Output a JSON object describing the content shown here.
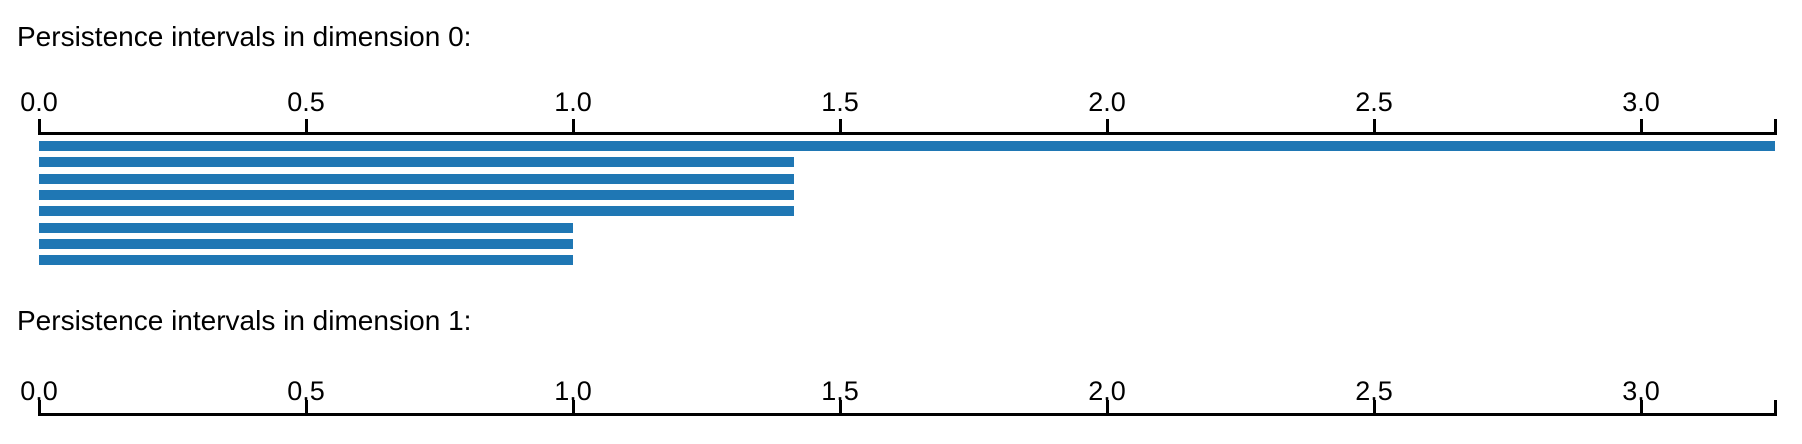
{
  "page": {
    "background_color": "#ffffff",
    "text_color": "#000000",
    "axis_color": "#000000",
    "bar_color": "#1f77b4"
  },
  "chart_data": [
    {
      "type": "bar",
      "subtype": "persistence-barcode",
      "dimension": 0,
      "title": "Persistence intervals in dimension 0:",
      "xlim": [
        0.0,
        3.25
      ],
      "xtick_values": [
        0.0,
        0.5,
        1.0,
        1.5,
        2.0,
        2.5,
        3.0
      ],
      "xtick_labels": [
        "0.0",
        "0.5",
        "1.0",
        "1.5",
        "2.0",
        "2.5",
        "3.0"
      ],
      "end_tick_value": 3.25,
      "grid": false,
      "legend": "none",
      "intervals": [
        {
          "birth": 0.0,
          "death": 3.25,
          "infinite": true
        },
        {
          "birth": 0.0,
          "death": 1.414,
          "infinite": false
        },
        {
          "birth": 0.0,
          "death": 1.414,
          "infinite": false
        },
        {
          "birth": 0.0,
          "death": 1.414,
          "infinite": false
        },
        {
          "birth": 0.0,
          "death": 1.414,
          "infinite": false
        },
        {
          "birth": 0.0,
          "death": 1.0,
          "infinite": false
        },
        {
          "birth": 0.0,
          "death": 1.0,
          "infinite": false
        },
        {
          "birth": 0.0,
          "death": 1.0,
          "infinite": false
        }
      ]
    },
    {
      "type": "bar",
      "subtype": "persistence-barcode",
      "dimension": 1,
      "title": "Persistence intervals in dimension 1:",
      "xlim": [
        0.0,
        3.25
      ],
      "xtick_values": [
        0.0,
        0.5,
        1.0,
        1.5,
        2.0,
        2.5,
        3.0
      ],
      "xtick_labels": [
        "0.0",
        "0.5",
        "1.0",
        "1.5",
        "2.0",
        "2.5",
        "3.0"
      ],
      "end_tick_value": 3.25,
      "grid": false,
      "legend": "none",
      "intervals": []
    }
  ]
}
